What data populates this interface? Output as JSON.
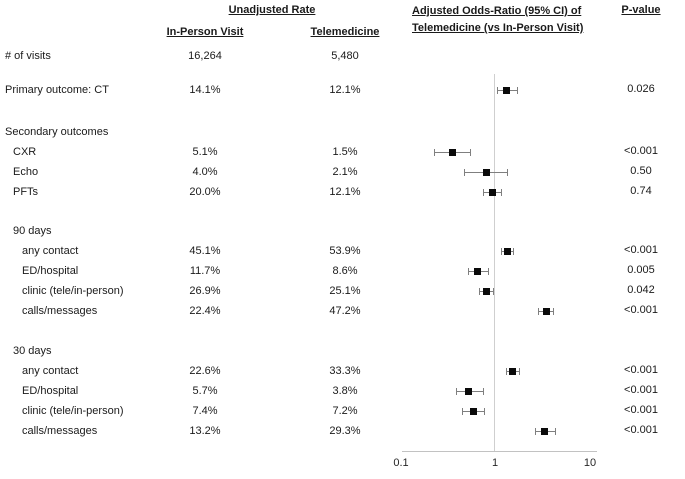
{
  "headers": {
    "unadjusted_rate": "Unadjusted Rate",
    "in_person": "In-Person Visit",
    "telemedicine": "Telemedicine",
    "adjusted_or_line1": "Adjusted Odds-Ratio (95% CI) of",
    "adjusted_or_line2": "Telemedicine (vs In-Person Visit)",
    "p_value": "P-value"
  },
  "axis": {
    "ticks": [
      "0.1",
      "1",
      "10"
    ]
  },
  "rows": [
    {
      "label": "# of visits",
      "indent": 0,
      "in_person": "16,264",
      "telemedicine": "5,480"
    },
    {
      "label": "Primary outcome: CT",
      "indent": 0,
      "in_person": "14.1%",
      "telemedicine": "12.1%",
      "or": 1.34,
      "ci": [
        1.05,
        1.75
      ],
      "p": "0.026"
    },
    {
      "label": "Secondary outcomes",
      "indent": 0
    },
    {
      "label": "CXR",
      "indent": 1,
      "in_person": "5.1%",
      "telemedicine": "1.5%",
      "or": 0.36,
      "ci": [
        0.23,
        0.57
      ],
      "p": "<0.001"
    },
    {
      "label": "Echo",
      "indent": 1,
      "in_person": "4.0%",
      "telemedicine": "2.1%",
      "or": 0.82,
      "ci": [
        0.48,
        1.4
      ],
      "p": "0.50"
    },
    {
      "label": "PFTs",
      "indent": 1,
      "in_person": "20.0%",
      "telemedicine": "12.1%",
      "or": 0.96,
      "ci": [
        0.76,
        1.21
      ],
      "p": "0.74"
    },
    {
      "label": "90 days",
      "indent": 1
    },
    {
      "label": "any contact",
      "indent": 2,
      "in_person": "45.1%",
      "telemedicine": "53.9%",
      "or": 1.37,
      "ci": [
        1.18,
        1.62
      ],
      "p": "<0.001"
    },
    {
      "label": "ED/hospital",
      "indent": 2,
      "in_person": "11.7%",
      "telemedicine": "8.6%",
      "or": 0.66,
      "ci": [
        0.52,
        0.88
      ],
      "p": "0.005"
    },
    {
      "label": "clinic (tele/in-person)",
      "indent": 2,
      "in_person": "26.9%",
      "telemedicine": "25.1%",
      "or": 0.82,
      "ci": [
        0.68,
        0.99
      ],
      "p": "0.042"
    },
    {
      "label": "calls/messages",
      "indent": 2,
      "in_person": "22.4%",
      "telemedicine": "47.2%",
      "or": 3.5,
      "ci": [
        2.87,
        4.27
      ],
      "p": "<0.001"
    },
    {
      "label": "30 days",
      "indent": 1
    },
    {
      "label": "any contact",
      "indent": 2,
      "in_person": "22.6%",
      "telemedicine": "33.3%",
      "or": 1.55,
      "ci": [
        1.31,
        1.84
      ],
      "p": "<0.001"
    },
    {
      "label": "ED/hospital",
      "indent": 2,
      "in_person": "5.7%",
      "telemedicine": "3.8%",
      "or": 0.53,
      "ci": [
        0.39,
        0.77
      ],
      "p": "<0.001"
    },
    {
      "label": "clinic (tele/in-person)",
      "indent": 2,
      "in_person": "7.4%",
      "telemedicine": "7.2%",
      "or": 0.6,
      "ci": [
        0.45,
        0.8
      ],
      "p": "<0.001"
    },
    {
      "label": "calls/messages",
      "indent": 2,
      "in_person": "13.2%",
      "telemedicine": "29.3%",
      "or": 3.36,
      "ci": [
        2.7,
        4.4
      ],
      "p": "<0.001"
    }
  ],
  "chart_data": {
    "type": "scatter",
    "subtype": "forest_plot",
    "title": "Adjusted Odds-Ratio (95% CI) of Telemedicine (vs In-Person Visit)",
    "x_scale": "log",
    "xlim": [
      0.1,
      10
    ],
    "x_ticks": [
      "0.1",
      "1",
      "10"
    ],
    "reference_line": 1,
    "legend": "none",
    "points": [
      {
        "label": "Primary outcome: CT",
        "or": 1.34,
        "ci_low": 1.05,
        "ci_high": 1.75,
        "p": "0.026"
      },
      {
        "label": "CXR",
        "or": 0.36,
        "ci_low": 0.23,
        "ci_high": 0.57,
        "p": "<0.001"
      },
      {
        "label": "Echo",
        "or": 0.82,
        "ci_low": 0.48,
        "ci_high": 1.4,
        "p": "0.50"
      },
      {
        "label": "PFTs",
        "or": 0.96,
        "ci_low": 0.76,
        "ci_high": 1.21,
        "p": "0.74"
      },
      {
        "label": "90 days any contact",
        "or": 1.37,
        "ci_low": 1.18,
        "ci_high": 1.62,
        "p": "<0.001"
      },
      {
        "label": "90 days ED/hospital",
        "or": 0.66,
        "ci_low": 0.52,
        "ci_high": 0.88,
        "p": "0.005"
      },
      {
        "label": "90 days clinic (tele/in-person)",
        "or": 0.82,
        "ci_low": 0.68,
        "ci_high": 0.99,
        "p": "0.042"
      },
      {
        "label": "90 days calls/messages",
        "or": 3.5,
        "ci_low": 2.87,
        "ci_high": 4.27,
        "p": "<0.001"
      },
      {
        "label": "30 days any contact",
        "or": 1.55,
        "ci_low": 1.31,
        "ci_high": 1.84,
        "p": "<0.001"
      },
      {
        "label": "30 days ED/hospital",
        "or": 0.53,
        "ci_low": 0.39,
        "ci_high": 0.77,
        "p": "<0.001"
      },
      {
        "label": "30 days clinic (tele/in-person)",
        "or": 0.6,
        "ci_low": 0.45,
        "ci_high": 0.8,
        "p": "<0.001"
      },
      {
        "label": "30 days calls/messages",
        "or": 3.36,
        "ci_low": 2.7,
        "ci_high": 4.4,
        "p": "<0.001"
      }
    ]
  }
}
